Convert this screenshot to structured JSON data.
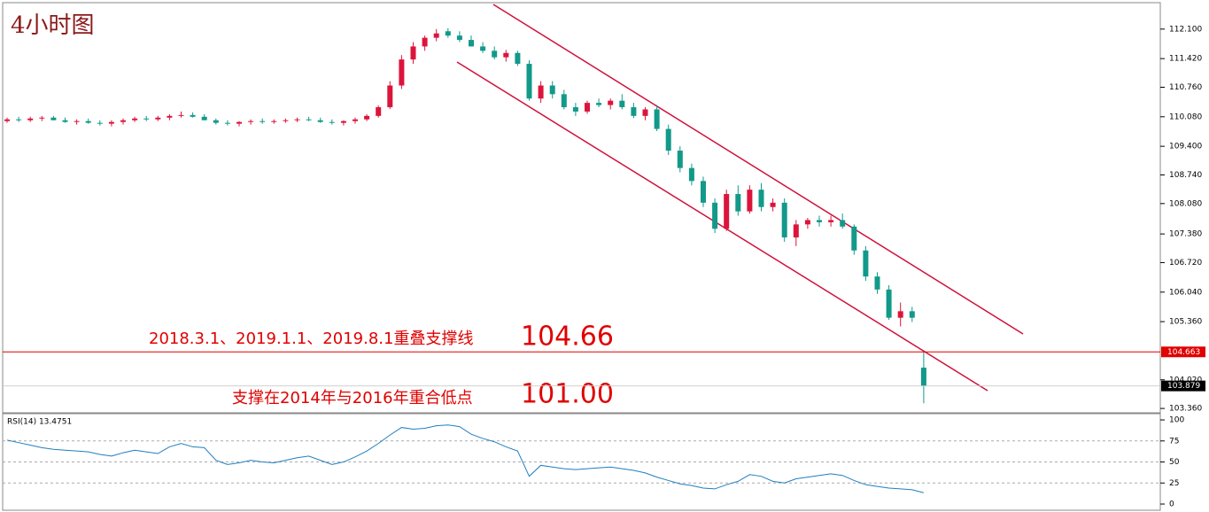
{
  "header": {
    "title": "4小时图"
  },
  "annotations": [
    {
      "text": "2018.3.1、2019.1.1、2019.8.1重叠支撑线",
      "value": "104.66"
    },
    {
      "text": "支撑在2014年与2016年重合低点",
      "value": "101.00"
    }
  ],
  "chart_data": [
    {
      "type": "candlestick",
      "open": [
        109.98,
        110.02,
        110.0,
        110.04,
        110.06,
        110.0,
        109.96,
        109.98,
        109.94,
        109.92,
        109.96,
        110.0,
        110.04,
        110.02,
        110.06,
        110.1,
        110.12,
        110.08,
        110.0,
        109.94,
        109.92,
        109.96,
        109.98,
        109.96,
        109.98,
        110.0,
        110.02,
        110.0,
        109.96,
        109.94,
        109.98,
        110.02,
        110.1,
        110.3,
        110.8,
        111.4,
        111.7,
        111.9,
        112.05,
        111.95,
        111.85,
        111.7,
        111.6,
        111.45,
        111.55,
        111.3,
        110.5,
        110.8,
        110.6,
        110.3,
        110.2,
        110.4,
        110.35,
        110.45,
        110.3,
        110.1,
        110.25,
        109.8,
        109.3,
        108.9,
        108.6,
        108.1,
        107.5,
        108.3,
        107.9,
        108.4,
        108.0,
        108.1,
        107.3,
        107.6,
        107.7,
        107.65,
        107.7,
        107.55,
        107.0,
        106.4,
        106.1,
        105.45,
        105.6,
        104.3
      ],
      "high": [
        110.06,
        110.08,
        110.08,
        110.1,
        110.1,
        110.06,
        110.02,
        110.04,
        110.0,
        110.0,
        110.04,
        110.08,
        110.1,
        110.1,
        110.14,
        110.2,
        110.18,
        110.14,
        110.04,
        110.0,
        109.98,
        110.02,
        110.04,
        110.02,
        110.04,
        110.06,
        110.08,
        110.06,
        110.02,
        110.0,
        110.06,
        110.14,
        110.34,
        110.9,
        111.5,
        111.8,
        111.95,
        112.1,
        112.12,
        112.05,
        111.95,
        111.8,
        111.7,
        111.62,
        111.6,
        111.38,
        110.9,
        110.9,
        110.7,
        110.4,
        110.45,
        110.5,
        110.5,
        110.6,
        110.4,
        110.3,
        110.35,
        109.9,
        109.4,
        109.0,
        108.7,
        108.2,
        108.4,
        108.5,
        108.5,
        108.55,
        108.2,
        108.2,
        107.7,
        107.75,
        107.8,
        107.8,
        107.85,
        107.6,
        107.1,
        106.5,
        106.2,
        105.8,
        105.7,
        104.66
      ],
      "low": [
        109.94,
        109.96,
        109.96,
        109.98,
        110.0,
        109.94,
        109.9,
        109.92,
        109.88,
        109.86,
        109.9,
        109.96,
        109.98,
        109.98,
        110.0,
        110.06,
        110.06,
        110.0,
        109.9,
        109.88,
        109.86,
        109.9,
        109.92,
        109.92,
        109.94,
        109.96,
        109.98,
        109.94,
        109.9,
        109.88,
        109.92,
        109.98,
        110.06,
        110.26,
        110.72,
        111.3,
        111.6,
        111.82,
        111.9,
        111.8,
        111.7,
        111.55,
        111.4,
        111.35,
        111.25,
        110.45,
        110.4,
        110.5,
        110.25,
        110.1,
        110.15,
        110.3,
        110.25,
        110.25,
        110.05,
        110.0,
        109.75,
        109.2,
        108.8,
        108.5,
        108.0,
        107.4,
        107.45,
        107.8,
        107.85,
        107.9,
        107.9,
        107.2,
        107.1,
        107.5,
        107.55,
        107.55,
        107.5,
        106.9,
        106.3,
        106.0,
        105.4,
        105.25,
        105.35,
        103.48
      ],
      "close": [
        110.02,
        110.0,
        110.04,
        110.06,
        110.0,
        109.96,
        109.98,
        109.94,
        109.92,
        109.96,
        110.0,
        110.04,
        110.02,
        110.06,
        110.1,
        110.12,
        110.08,
        110.0,
        109.94,
        109.92,
        109.96,
        109.98,
        109.96,
        109.98,
        110.0,
        110.02,
        110.0,
        109.96,
        109.94,
        109.98,
        110.02,
        110.1,
        110.3,
        110.8,
        111.4,
        111.7,
        111.9,
        112.0,
        111.95,
        111.85,
        111.7,
        111.6,
        111.45,
        111.55,
        111.3,
        110.5,
        110.8,
        110.6,
        110.3,
        110.2,
        110.4,
        110.35,
        110.45,
        110.3,
        110.1,
        110.25,
        109.8,
        109.3,
        108.9,
        108.6,
        108.1,
        107.5,
        108.3,
        107.9,
        108.4,
        108.0,
        108.1,
        107.3,
        107.6,
        107.7,
        107.65,
        107.7,
        107.55,
        107.0,
        106.4,
        106.1,
        105.45,
        105.6,
        105.45,
        103.88
      ],
      "up_color": "#dc143c",
      "down_color": "#12998a",
      "ylim": [
        103.26,
        112.77
      ],
      "yticks": [
        {
          "value": 112.1,
          "label": "112.100"
        },
        {
          "value": 111.42,
          "label": "111.420"
        },
        {
          "value": 110.76,
          "label": "110.760"
        },
        {
          "value": 110.08,
          "label": "110.080"
        },
        {
          "value": 109.4,
          "label": "109.400"
        },
        {
          "value": 108.74,
          "label": "108.740"
        },
        {
          "value": 108.08,
          "label": "108.080"
        },
        {
          "value": 107.38,
          "label": "107.380"
        },
        {
          "value": 106.72,
          "label": "106.720"
        },
        {
          "value": 106.04,
          "label": "106.040"
        },
        {
          "value": 105.36,
          "label": "105.360"
        },
        {
          "value": 104.02,
          "label": "104.020"
        },
        {
          "value": 103.36,
          "label": "103.360"
        }
      ],
      "support_line": 104.663,
      "support_color": "#e00000",
      "last_price": 103.879
    },
    {
      "type": "line",
      "title": "RSI(14) 13.4751",
      "color": "#1f7fbf",
      "values": [
        76,
        73,
        70,
        67,
        65,
        64,
        63,
        62,
        59,
        57,
        61,
        64,
        62,
        60,
        68,
        72,
        68,
        67,
        52,
        47,
        49,
        52,
        50,
        49,
        52,
        55,
        57,
        52,
        47,
        50,
        56,
        63,
        72,
        82,
        91,
        89,
        90,
        93,
        94,
        92,
        83,
        78,
        74,
        68,
        63,
        33,
        46,
        44,
        42,
        41,
        42,
        43,
        44,
        42,
        40,
        37,
        32,
        28,
        24,
        22,
        19,
        18,
        23,
        27,
        35,
        33,
        27,
        25,
        30,
        32,
        34,
        36,
        34,
        28,
        23,
        21,
        19,
        18,
        17,
        13.4751
      ],
      "ylim": [
        -8.4,
        107.4
      ],
      "yticks": [
        100,
        75,
        50,
        25,
        0
      ],
      "grid": true
    }
  ]
}
